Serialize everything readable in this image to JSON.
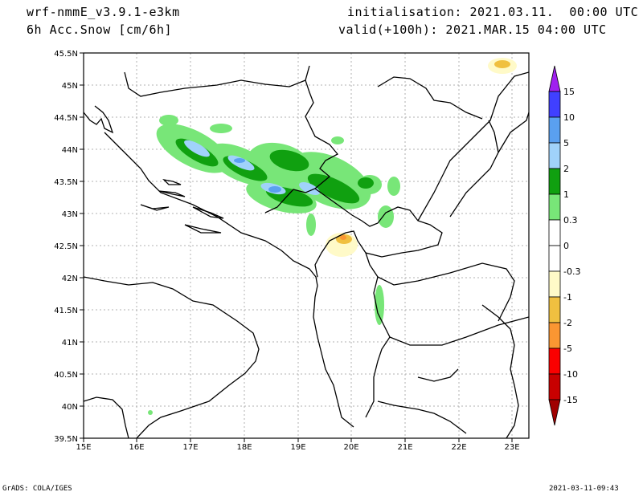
{
  "header": {
    "model": "wrf-nmmE_v3.9.1-e3km",
    "field": "6h Acc.Snow [cm/6h]",
    "init": "initialisation: 2021.03.11.  00:00 UTC",
    "valid": "valid(+100h): 2021.MAR.15 04:00 UTC"
  },
  "footer": {
    "credit": "GrADS: COLA/IGES",
    "timestamp": "2021-03-11-09:43"
  },
  "map": {
    "lon_labels": [
      "15E",
      "16E",
      "17E",
      "18E",
      "19E",
      "20E",
      "21E",
      "22E",
      "23E"
    ],
    "lat_labels": [
      "45.5N",
      "45N",
      "44.5N",
      "44N",
      "43.5N",
      "43N",
      "42.5N",
      "42N",
      "41.5N",
      "41N",
      "40.5N",
      "40N",
      "39.5N"
    ],
    "lon_range": [
      15,
      23.3
    ],
    "lat_range": [
      39.5,
      45.5
    ]
  },
  "colorbar": {
    "labels": [
      "15",
      "10",
      "5",
      "2",
      "1",
      "0.3",
      "0",
      "-0.3",
      "-1",
      "-2",
      "-5",
      "-10",
      "-15"
    ],
    "colors": [
      "#a020f0",
      "#4040ff",
      "#5aa0f0",
      "#a0d2fa",
      "#10a010",
      "#78e678",
      "#ffffff",
      "#ffffff",
      "#fffac8",
      "#f0c040",
      "#fa9632",
      "#fa0000",
      "#c80000",
      "#a00000"
    ]
  }
}
